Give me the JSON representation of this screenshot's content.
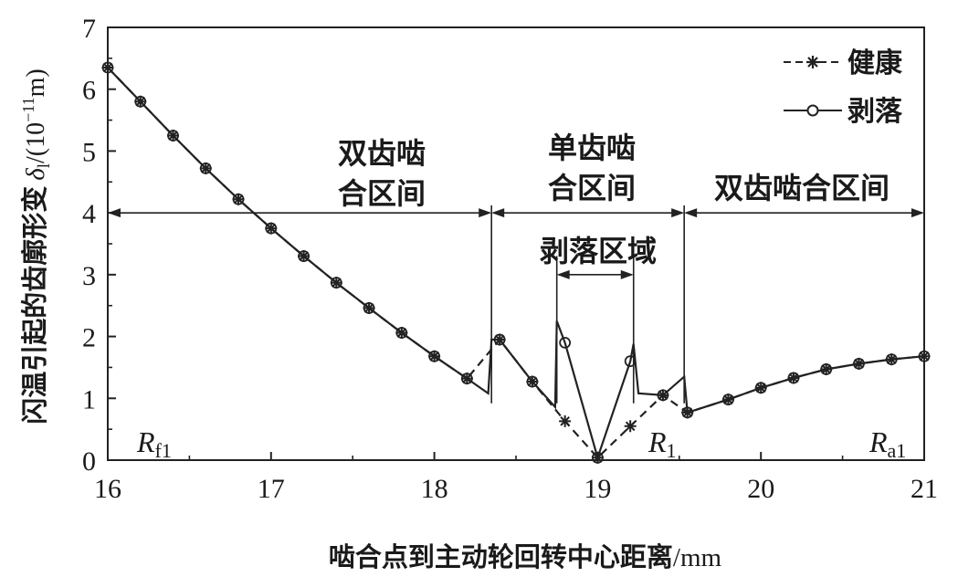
{
  "chart_data": {
    "type": "line",
    "xlabel": "啮合点到主动轮回转中心距离",
    "xlabel_unit": "/mm",
    "ylabel_text": "闪温引起的齿廓形变",
    "ylabel_symbol": "δ",
    "ylabel_subscript": "l",
    "ylabel_unit_prefix": "/(10",
    "ylabel_unit_exp": "−11",
    "ylabel_unit_suffix": "m)",
    "xlim": [
      16,
      21
    ],
    "ylim": [
      0,
      7
    ],
    "xticks": [
      "16",
      "17",
      "18",
      "19",
      "20",
      "21"
    ],
    "yticks": [
      "0",
      "1",
      "2",
      "3",
      "4",
      "5",
      "6",
      "7"
    ],
    "grid": false,
    "legend_position": "top-right",
    "series": [
      {
        "name": "健康",
        "line_style": "dashed",
        "marker": "asterisk",
        "x": [
          16.0,
          16.2,
          16.4,
          16.6,
          16.8,
          17.0,
          17.2,
          17.4,
          17.6,
          17.8,
          18.0,
          18.2,
          18.4,
          18.6,
          18.8,
          19.0,
          19.2,
          19.4,
          19.55,
          19.8,
          20.0,
          20.2,
          20.4,
          20.6,
          20.8,
          21.0
        ],
        "y": [
          6.35,
          5.8,
          5.25,
          4.72,
          4.22,
          3.75,
          3.3,
          2.87,
          2.46,
          2.06,
          1.68,
          1.32,
          1.95,
          1.27,
          0.63,
          0.04,
          0.55,
          1.05,
          0.77,
          0.98,
          1.17,
          1.33,
          1.47,
          1.56,
          1.63,
          1.68
        ],
        "mark_x": [
          16.0,
          16.2,
          16.4,
          16.6,
          16.8,
          17.0,
          17.2,
          17.4,
          17.6,
          17.8,
          18.0,
          18.2,
          18.4,
          18.6,
          18.8,
          19.0,
          19.2,
          19.4,
          19.55,
          19.8,
          20.0,
          20.2,
          20.4,
          20.6,
          20.8,
          21.0
        ],
        "mark_y": [
          6.35,
          5.8,
          5.25,
          4.72,
          4.22,
          3.75,
          3.3,
          2.87,
          2.46,
          2.06,
          1.68,
          1.32,
          1.95,
          1.27,
          0.63,
          0.04,
          0.55,
          1.05,
          0.77,
          0.98,
          1.17,
          1.33,
          1.47,
          1.56,
          1.63,
          1.68
        ]
      },
      {
        "name": "剥落",
        "line_style": "solid",
        "marker": "circle",
        "x": [
          16.0,
          16.2,
          16.4,
          16.6,
          16.8,
          17.0,
          17.2,
          17.4,
          17.6,
          17.8,
          18.0,
          18.2,
          18.33,
          18.35,
          18.4,
          18.6,
          18.74,
          18.75,
          18.8,
          19.0,
          19.2,
          19.22,
          19.25,
          19.4,
          19.53,
          19.55,
          19.8,
          20.0,
          20.2,
          20.4,
          20.6,
          20.8,
          21.0
        ],
        "y": [
          6.35,
          5.8,
          5.25,
          4.72,
          4.22,
          3.75,
          3.3,
          2.87,
          2.46,
          2.06,
          1.68,
          1.32,
          1.08,
          1.95,
          1.95,
          1.27,
          0.86,
          2.25,
          1.9,
          0.04,
          1.6,
          1.88,
          1.08,
          1.05,
          1.35,
          0.77,
          0.98,
          1.17,
          1.33,
          1.47,
          1.56,
          1.63,
          1.68
        ],
        "mark_x": [
          16.0,
          16.2,
          16.4,
          16.6,
          16.8,
          17.0,
          17.2,
          17.4,
          17.6,
          17.8,
          18.0,
          18.2,
          18.4,
          18.6,
          18.8,
          19.0,
          19.2,
          19.4,
          19.55,
          19.8,
          20.0,
          20.2,
          20.4,
          20.6,
          20.8,
          21.0
        ],
        "mark_y": [
          6.35,
          5.8,
          5.25,
          4.72,
          4.22,
          3.75,
          3.3,
          2.87,
          2.46,
          2.06,
          1.68,
          1.32,
          1.95,
          1.27,
          1.9,
          0.04,
          1.6,
          1.05,
          0.77,
          0.98,
          1.17,
          1.33,
          1.47,
          1.56,
          1.63,
          1.68
        ]
      }
    ],
    "annotations": {
      "bounds": [
        {
          "x": 18.35,
          "top": 4.12
        },
        {
          "x": 19.53,
          "top": 4.12
        },
        {
          "x": 18.75,
          "top": 3.3
        },
        {
          "x": 19.22,
          "top": 3.3
        }
      ],
      "double_arrow_y": 4.0,
      "spall_arrow_y": 3.0,
      "regions": [
        {
          "lines": [
            "双齿啮",
            "合区间"
          ]
        },
        {
          "lines": [
            "单齿啮",
            "合区间"
          ]
        },
        {
          "lines": [
            "双齿啮合区间"
          ]
        }
      ],
      "spall_region_label": "剥落区域",
      "point_labels": [
        {
          "symbol": "R",
          "sub": "f1"
        },
        {
          "symbol": "R",
          "sub": "1"
        },
        {
          "symbol": "R",
          "sub": "a1"
        }
      ]
    }
  }
}
